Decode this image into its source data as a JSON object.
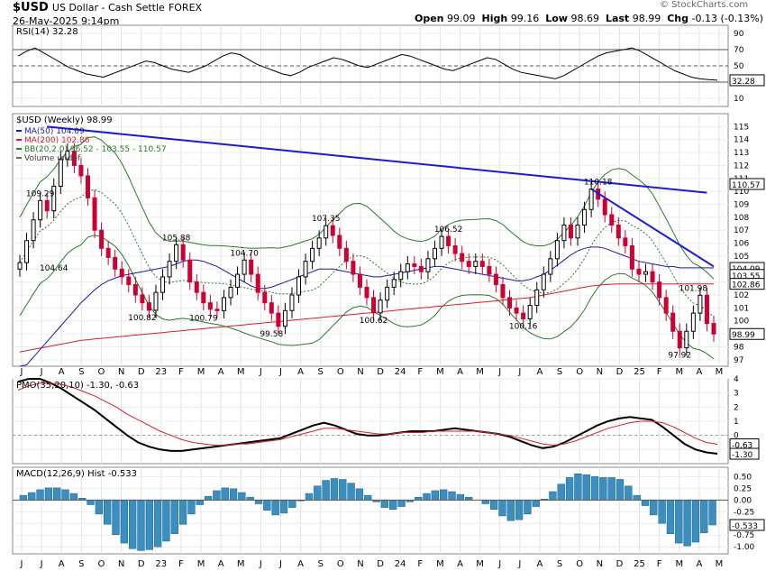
{
  "header": {
    "symbol": "$USD",
    "name": "US Dollar - Cash Settle",
    "exchange": "FOREX",
    "date": "26-May-2025 9:14pm",
    "open_label": "Open",
    "open": "99.09",
    "high_label": "High",
    "high": "99.16",
    "low_label": "Low",
    "low": "98.69",
    "last_label": "Last",
    "last": "98.99",
    "chg_label": "Chg",
    "chg": "-0.13 (-0.13%)",
    "watermark": "© StockCharts.com"
  },
  "chart_data": [
    {
      "type": "line",
      "title": "RSI(14) 32.28",
      "ylim": [
        0,
        100
      ],
      "yticks": [
        "90",
        "70",
        "50",
        "30",
        "10"
      ],
      "reference_lines": [
        70,
        50,
        30
      ],
      "last_value_label": "32.28",
      "series": [
        {
          "name": "RSI(14)",
          "values": [
            62,
            68,
            72,
            66,
            60,
            54,
            48,
            44,
            40,
            38,
            36,
            40,
            44,
            48,
            52,
            56,
            54,
            50,
            46,
            44,
            42,
            46,
            50,
            56,
            62,
            66,
            64,
            58,
            52,
            48,
            44,
            40,
            38,
            42,
            48,
            52,
            56,
            60,
            58,
            54,
            50,
            48,
            52,
            56,
            60,
            64,
            62,
            58,
            54,
            50,
            46,
            44,
            48,
            52,
            56,
            60,
            58,
            52,
            46,
            42,
            40,
            38,
            36,
            34,
            38,
            44,
            50,
            56,
            62,
            66,
            68,
            70,
            72,
            68,
            62,
            56,
            50,
            44,
            40,
            36,
            34,
            33,
            32.28
          ]
        }
      ]
    },
    {
      "type": "candlestick",
      "title": "$USD (Weekly) 98.99",
      "legend": [
        "MA(50) 104.09",
        "MA(200) 102.86",
        "BB(20,2.0) 96.52 - 103.55 - 110.57",
        "Volume undef"
      ],
      "ylim": [
        96.5,
        116
      ],
      "yticks": [
        "115",
        "114",
        "113",
        "112",
        "111",
        "110",
        "109",
        "108",
        "107",
        "106",
        "105",
        "104",
        "103",
        "102",
        "101",
        "100",
        "99",
        "98",
        "97"
      ],
      "annotations": [
        {
          "x": "Jul 2022",
          "label": "109.29"
        },
        {
          "x": "Jul 2022",
          "label": "104.64"
        },
        {
          "x": "Jan 2023",
          "label": "105.88"
        },
        {
          "x": "Nov 2022",
          "label": "100.82"
        },
        {
          "x": "Mar 2023",
          "label": "100.79"
        },
        {
          "x": "Apr 2023",
          "label": "104.70"
        },
        {
          "x": "Jun 2023",
          "label": "99.58"
        },
        {
          "x": "Sep 2023",
          "label": "107.35"
        },
        {
          "x": "Dec 2023",
          "label": "100.62"
        },
        {
          "x": "Apr 2024",
          "label": "106.52"
        },
        {
          "x": "Sep 2024",
          "label": "100.16"
        },
        {
          "x": "Jan 2025",
          "label": "110.18"
        },
        {
          "x": "May 2025",
          "label": "101.98"
        },
        {
          "x": "Apr 2025",
          "label": "97.92"
        }
      ],
      "right_labels": [
        "110.57",
        "104.09",
        "103.55",
        "102.86",
        "98.99"
      ],
      "close": [
        104.5,
        106.2,
        107.8,
        109.29,
        108.5,
        110.4,
        112.5,
        113.1,
        112.0,
        111.2,
        109.5,
        107.0,
        105.6,
        104.9,
        104.0,
        103.4,
        102.8,
        102.0,
        101.4,
        100.82,
        102.2,
        103.4,
        104.6,
        105.88,
        104.7,
        103.0,
        102.2,
        101.4,
        100.9,
        100.79,
        101.8,
        102.6,
        103.6,
        104.7,
        103.6,
        102.2,
        101.4,
        100.6,
        99.58,
        100.8,
        102.0,
        103.4,
        104.6,
        105.6,
        106.4,
        107.35,
        106.6,
        105.6,
        104.6,
        103.6,
        102.6,
        101.8,
        100.62,
        101.6,
        102.6,
        103.2,
        103.8,
        104.4,
        104.2,
        103.8,
        104.8,
        105.6,
        106.52,
        105.8,
        105.2,
        104.6,
        104.2,
        104.6,
        104.2,
        103.6,
        102.8,
        101.8,
        101.0,
        100.6,
        100.16,
        101.2,
        102.4,
        103.6,
        104.8,
        106.2,
        107.4,
        106.4,
        107.4,
        108.6,
        110.18,
        109.4,
        108.2,
        107.4,
        106.4,
        105.8,
        104.0,
        103.6,
        103.8,
        103.0,
        101.8,
        100.6,
        99.2,
        97.92,
        99.2,
        100.6,
        101.98,
        99.8,
        98.99
      ],
      "series_ma50": [
        96,
        96.6,
        97.2,
        97.8,
        98.4,
        99,
        99.6,
        100.2,
        100.8,
        101.4,
        101.9,
        102.4,
        102.8,
        103.1,
        103.3,
        103.5,
        103.6,
        103.7,
        103.8,
        103.9,
        104.0,
        104.1,
        104.2,
        104.4,
        104.6,
        104.7,
        104.7,
        104.6,
        104.4,
        104.2,
        103.9,
        103.6,
        103.3,
        103.0,
        102.7,
        102.5,
        102.5,
        102.6,
        102.8,
        103.0,
        103.2,
        103.4,
        103.6,
        103.8,
        104.0,
        104.0,
        104.0,
        103.9,
        103.8,
        103.7,
        103.6,
        103.5,
        103.4,
        103.4,
        103.5,
        103.6,
        103.7,
        103.8,
        103.9,
        104.0,
        104.1,
        104.2,
        104.2,
        104.1,
        104.0,
        103.9,
        103.8,
        103.7,
        103.6,
        103.5,
        103.4,
        103.3,
        103.2,
        103.1,
        103.1,
        103.2,
        103.4,
        103.6,
        103.9,
        104.3,
        104.7,
        105.1,
        105.4,
        105.6,
        105.7,
        105.7,
        105.6,
        105.4,
        105.2,
        105.0,
        104.8,
        104.6,
        104.5,
        104.4,
        104.3,
        104.2,
        104.2,
        104.1,
        104.1,
        104.1,
        104.1,
        104.1,
        104.09
      ],
      "series_ma200": [
        97.6,
        97.7,
        97.8,
        97.9,
        98.0,
        98.1,
        98.2,
        98.3,
        98.4,
        98.5,
        98.55,
        98.6,
        98.65,
        98.7,
        98.75,
        98.8,
        98.85,
        98.9,
        98.95,
        99.0,
        99.05,
        99.1,
        99.15,
        99.2,
        99.25,
        99.3,
        99.35,
        99.4,
        99.45,
        99.5,
        99.55,
        99.6,
        99.65,
        99.7,
        99.75,
        99.8,
        99.85,
        99.9,
        99.95,
        100.0,
        100.05,
        100.1,
        100.15,
        100.2,
        100.25,
        100.3,
        100.35,
        100.4,
        100.45,
        100.5,
        100.55,
        100.6,
        100.65,
        100.7,
        100.75,
        100.8,
        100.85,
        100.9,
        100.95,
        101.0,
        101.05,
        101.1,
        101.15,
        101.2,
        101.25,
        101.3,
        101.35,
        101.4,
        101.45,
        101.5,
        101.55,
        101.6,
        101.65,
        101.7,
        101.75,
        101.8,
        101.9,
        102.0,
        102.1,
        102.2,
        102.3,
        102.4,
        102.5,
        102.6,
        102.7,
        102.75,
        102.8,
        102.83,
        102.86,
        102.86,
        102.86,
        102.86,
        102.86,
        102.86,
        102.86,
        102.86,
        102.86,
        102.86,
        102.86,
        102.86,
        102.86,
        102.86,
        102.86
      ],
      "trendlines": [
        {
          "from": {
            "x": "Sep 2022",
            "y": 115.0
          },
          "to": {
            "x": "May 2025",
            "y": 109.9
          }
        },
        {
          "from": {
            "x": "Jan 2025",
            "y": 110.18
          },
          "to": {
            "x": "May 2025",
            "y": 104.2
          }
        }
      ]
    },
    {
      "type": "line",
      "title": "PMO(35,20,10) -1.30, -0.63",
      "ylim": [
        -2,
        4
      ],
      "yticks": [
        "4",
        "3",
        "2",
        "1",
        "0",
        "-1"
      ],
      "right_labels": [
        "-0.63",
        "-1.30"
      ],
      "series": [
        {
          "name": "PMO",
          "values": [
            3.8,
            4.0,
            4.0,
            3.7,
            3.3,
            2.8,
            2.3,
            1.8,
            1.2,
            0.6,
            0.0,
            -0.5,
            -0.8,
            -1.0,
            -1.1,
            -1.1,
            -1.0,
            -0.9,
            -0.8,
            -0.7,
            -0.6,
            -0.5,
            -0.4,
            -0.3,
            -0.2,
            0.1,
            0.4,
            0.7,
            0.9,
            0.7,
            0.4,
            0.1,
            0.0,
            0.0,
            0.1,
            0.2,
            0.3,
            0.3,
            0.3,
            0.4,
            0.5,
            0.4,
            0.3,
            0.2,
            0.1,
            -0.1,
            -0.4,
            -0.7,
            -0.9,
            -0.8,
            -0.5,
            -0.1,
            0.3,
            0.7,
            1.0,
            1.2,
            1.3,
            1.2,
            1.1,
            0.6,
            0.0,
            -0.6,
            -1.0,
            -1.2,
            -1.3
          ]
        },
        {
          "name": "Signal",
          "values": [
            3.2,
            3.5,
            3.7,
            3.7,
            3.6,
            3.4,
            3.1,
            2.8,
            2.4,
            2.0,
            1.5,
            1.1,
            0.7,
            0.3,
            0.0,
            -0.3,
            -0.5,
            -0.6,
            -0.7,
            -0.7,
            -0.6,
            -0.6,
            -0.5,
            -0.4,
            -0.3,
            -0.1,
            0.1,
            0.3,
            0.5,
            0.5,
            0.4,
            0.3,
            0.2,
            0.1,
            0.1,
            0.2,
            0.2,
            0.2,
            0.3,
            0.3,
            0.3,
            0.3,
            0.3,
            0.2,
            0.1,
            0.0,
            -0.2,
            -0.4,
            -0.6,
            -0.7,
            -0.6,
            -0.4,
            -0.1,
            0.2,
            0.5,
            0.7,
            0.9,
            1.0,
            1.0,
            0.9,
            0.6,
            0.2,
            -0.2,
            -0.5,
            -0.63
          ]
        }
      ]
    },
    {
      "type": "bar",
      "title": "MACD(12,26,9) Hist -0.533",
      "ylim": [
        -1.15,
        0.7
      ],
      "yticks": [
        "0.50",
        "0.25",
        "0.00",
        "-0.25",
        "-0.50",
        "-0.75",
        "-1.00"
      ],
      "right_label": "-0.533",
      "values": [
        0.1,
        0.16,
        0.22,
        0.26,
        0.26,
        0.22,
        0.14,
        0.04,
        -0.1,
        -0.3,
        -0.52,
        -0.74,
        -0.92,
        -1.04,
        -1.08,
        -1.06,
        -1.0,
        -0.88,
        -0.72,
        -0.52,
        -0.3,
        -0.1,
        0.08,
        0.2,
        0.26,
        0.24,
        0.16,
        0.06,
        -0.08,
        -0.22,
        -0.32,
        -0.28,
        -0.16,
        -0.02,
        0.14,
        0.3,
        0.42,
        0.46,
        0.44,
        0.36,
        0.24,
        0.1,
        -0.04,
        -0.16,
        -0.2,
        -0.14,
        -0.04,
        0.06,
        0.14,
        0.2,
        0.22,
        0.18,
        0.12,
        0.06,
        0.0,
        -0.08,
        -0.2,
        -0.34,
        -0.44,
        -0.42,
        -0.3,
        -0.14,
        0.02,
        0.18,
        0.34,
        0.48,
        0.56,
        0.54,
        0.5,
        0.48,
        0.48,
        0.44,
        0.3,
        0.1,
        -0.12,
        -0.32,
        -0.5,
        -0.72,
        -0.92,
        -0.98,
        -0.9,
        -0.7,
        -0.533
      ]
    }
  ],
  "x_axis": {
    "top_labels": [
      "J",
      "J",
      "A",
      "S",
      "O",
      "N",
      "D",
      "23",
      "F",
      "M",
      "A",
      "M",
      "J",
      "J",
      "A",
      "S",
      "O",
      "N",
      "D",
      "24",
      "F",
      "M",
      "A",
      "M",
      "J",
      "J",
      "A",
      "S",
      "O",
      "N",
      "D",
      "25",
      "F",
      "M",
      "A",
      "M"
    ],
    "bottom_labels": [
      "J",
      "J",
      "A",
      "S",
      "O",
      "N",
      "D",
      "23",
      "F",
      "M",
      "A",
      "M",
      "J",
      "J",
      "A",
      "S",
      "O",
      "N",
      "D",
      "24",
      "F",
      "M",
      "A",
      "M",
      "J",
      "J",
      "A",
      "S",
      "O",
      "N",
      "D",
      "25",
      "F",
      "M",
      "A",
      "M"
    ]
  },
  "colors": {
    "up_candle": "#000000",
    "down_candle": "#cc0033",
    "ma50": "#1a1aa8",
    "ma200": "#d81e2a",
    "bb": "#2a7a2a",
    "trendline": "#1a1ad8",
    "pmo": "#000000",
    "pmo_signal": "#d81e2a",
    "hist": "#3b8fc0"
  }
}
